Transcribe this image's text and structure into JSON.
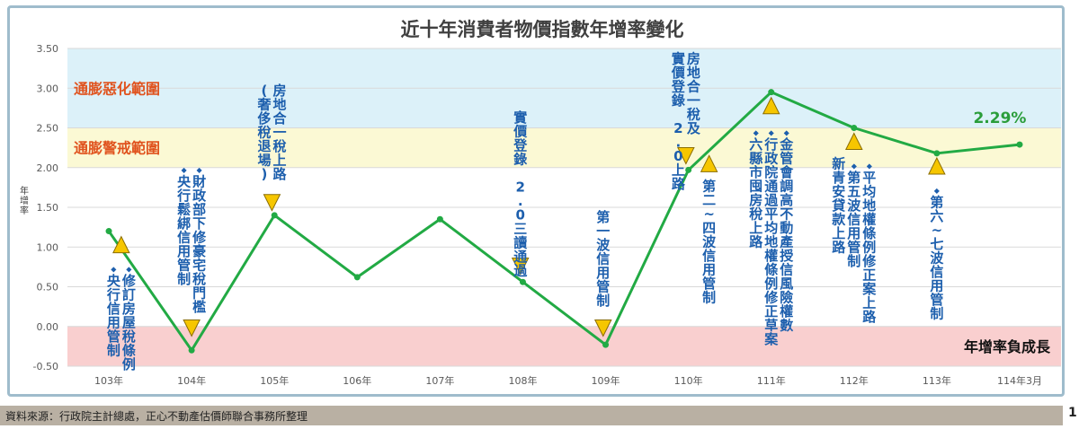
{
  "chart_data": {
    "type": "line",
    "title": "近十年消費者物價指數年增率變化",
    "ylabel": "年增率",
    "xlabel": "",
    "ylim": [
      -0.5,
      3.5
    ],
    "yticks": [
      "3.50",
      "3.00",
      "2.50",
      "2.00",
      "1.50",
      "1.00",
      "0.50",
      "0.00",
      "-0.50"
    ],
    "categories": [
      "103年",
      "104年",
      "105年",
      "106年",
      "107年",
      "108年",
      "109年",
      "110年",
      "111年",
      "112年",
      "113年",
      "114年3月"
    ],
    "values": [
      1.2,
      -0.3,
      1.4,
      0.62,
      1.35,
      0.56,
      -0.23,
      1.97,
      2.95,
      2.5,
      2.18,
      2.29
    ],
    "series_color": "#22aa44",
    "last_value_label": "2.29%",
    "bands": [
      {
        "from": 2.5,
        "to": 3.5,
        "color": "#dcf1f9",
        "label": "通膨惡化範圍",
        "label_color": "#e0531e"
      },
      {
        "from": 2.0,
        "to": 2.5,
        "color": "#fbf9d4",
        "label": "通膨警戒範圍",
        "label_color": "#e0531e"
      },
      {
        "from": -0.5,
        "to": 0.0,
        "color": "#f9cfcf",
        "label": "年增率負成長",
        "label_color": "#111111"
      }
    ],
    "annotations": [
      {
        "anchor": 0.15,
        "dir": "up",
        "marker_y": 1.03,
        "text_top": 0.85,
        "cols": [
          "◆央行信用管制",
          "◆修訂房屋稅條例"
        ]
      },
      {
        "anchor": 1.0,
        "dir": "down",
        "marker_y": -0.02,
        "text_top": 2.1,
        "cols": [
          "◆央行鬆綁信用管制",
          "◆財政部下修豪宅稅門檻"
        ]
      },
      {
        "anchor": 1.97,
        "dir": "down",
        "marker_y": 1.56,
        "text_top": 3.07,
        "cols": [
          "(奢侈稅退場)",
          "房地合一稅上路"
        ]
      },
      {
        "anchor": 4.97,
        "dir": "down",
        "marker_y": 0.76,
        "text_top": 2.73,
        "cols": [
          "實價登錄 2.0三讀通過"
        ]
      },
      {
        "anchor": 5.97,
        "dir": "down",
        "marker_y": -0.02,
        "text_top": 1.48,
        "cols": [
          "第一波信用管制"
        ]
      },
      {
        "anchor": 6.97,
        "dir": "down",
        "marker_y": 2.15,
        "text_top": 3.47,
        "cols": [
          "實價登錄 2.0上路",
          "房地合一稅及"
        ]
      },
      {
        "anchor": 7.25,
        "dir": "up",
        "marker_y": 2.05,
        "text_top": 1.87,
        "cols": [
          "第二~四波信用管制"
        ]
      },
      {
        "anchor": 8.0,
        "dir": "up",
        "marker_y": 2.78,
        "text_top": 2.57,
        "cols": [
          "◆六縣市囤房稅上路",
          "◆行政院通過平均地權條例修正草案",
          "◆金管會調高不動產授信風險權數"
        ]
      },
      {
        "anchor": 9.0,
        "dir": "up",
        "marker_y": 2.33,
        "text_top": 2.15,
        "cols": [
          "新青安貸款上路",
          "◆第五波信用管制",
          "◆平均地權條例修正案上路"
        ]
      },
      {
        "anchor": 10.0,
        "dir": "up",
        "marker_y": 2.02,
        "text_top": 1.84,
        "cols": [
          "◆第六~七波信用管制"
        ]
      }
    ]
  },
  "footer": {
    "source": "資料來源：行政院主計總處，正心不動產估價師聯合事務所整理",
    "page_number": "1"
  }
}
